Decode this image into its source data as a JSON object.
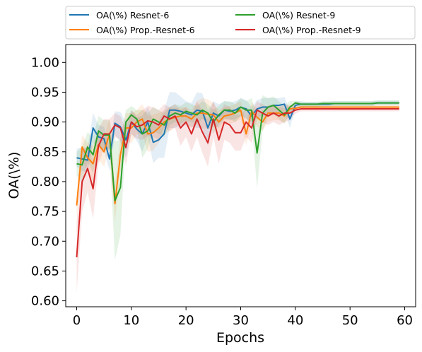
{
  "chart_data": {
    "type": "line",
    "title": "",
    "xlabel": "Epochs",
    "ylabel": "OA(\\%)",
    "xlim": [
      -2,
      62
    ],
    "ylim": [
      0.59,
      1.03
    ],
    "xticks": [
      0,
      10,
      20,
      30,
      40,
      50,
      60
    ],
    "yticks": [
      0.6,
      0.65,
      0.7,
      0.75,
      0.8,
      0.85,
      0.9,
      0.95,
      1.0
    ],
    "grid": false,
    "legend": {
      "position": "top",
      "columns": 2
    },
    "series": [
      {
        "name": "OA(\\%) Resnet-6",
        "color": "#1f77b4",
        "values": [
          0.84,
          0.838,
          0.836,
          0.89,
          0.875,
          0.872,
          0.838,
          0.898,
          0.892,
          0.87,
          0.9,
          0.888,
          0.88,
          0.9,
          0.866,
          0.87,
          0.88,
          0.92,
          0.92,
          0.918,
          0.915,
          0.912,
          0.92,
          0.918,
          0.89,
          0.915,
          0.91,
          0.92,
          0.918,
          0.92,
          0.925,
          0.922,
          0.91,
          0.922,
          0.925,
          0.925,
          0.928,
          0.928,
          0.93,
          0.905,
          0.928,
          0.93,
          0.93,
          0.93,
          0.93,
          0.93,
          0.93,
          0.931,
          0.931,
          0.931,
          0.931,
          0.931,
          0.931,
          0.931,
          0.931,
          0.932,
          0.932,
          0.932,
          0.932,
          0.932
        ],
        "band": [
          0.015,
          0.02,
          0.02,
          0.025,
          0.02,
          0.02,
          0.02,
          0.02,
          0.025,
          0.03,
          0.02,
          0.02,
          0.03,
          0.025,
          0.035,
          0.03,
          0.04,
          0.03,
          0.03,
          0.025,
          0.02,
          0.02,
          0.03,
          0.03,
          0.03,
          0.02,
          0.02,
          0.015,
          0.015,
          0.015,
          0.015,
          0.015,
          0.015,
          0.015,
          0.015,
          0.015,
          0.012,
          0.012,
          0.012,
          0.015,
          0.006,
          0.005,
          0.004,
          0.004,
          0.004,
          0.004,
          0.004,
          0.004,
          0.004,
          0.004,
          0.004,
          0.004,
          0.004,
          0.004,
          0.004,
          0.004,
          0.004,
          0.004,
          0.004,
          0.004
        ]
      },
      {
        "name": "OA(\\%) Prop.-Resnet-6",
        "color": "#ff7f0e",
        "values": [
          0.76,
          0.858,
          0.84,
          0.83,
          0.862,
          0.85,
          0.88,
          0.763,
          0.845,
          0.89,
          0.89,
          0.9,
          0.905,
          0.88,
          0.882,
          0.89,
          0.9,
          0.905,
          0.908,
          0.91,
          0.91,
          0.905,
          0.915,
          0.915,
          0.913,
          0.912,
          0.9,
          0.91,
          0.912,
          0.915,
          0.92,
          0.88,
          0.918,
          0.908,
          0.9,
          0.915,
          0.915,
          0.915,
          0.91,
          0.922,
          0.923,
          0.925,
          0.925,
          0.925,
          0.925,
          0.925,
          0.925,
          0.925,
          0.925,
          0.925,
          0.925,
          0.925,
          0.925,
          0.925,
          0.925,
          0.925,
          0.925,
          0.925,
          0.925,
          0.925
        ],
        "band": [
          0.02,
          0.02,
          0.025,
          0.03,
          0.025,
          0.025,
          0.025,
          0.03,
          0.03,
          0.025,
          0.025,
          0.02,
          0.025,
          0.03,
          0.03,
          0.025,
          0.02,
          0.02,
          0.015,
          0.015,
          0.015,
          0.015,
          0.02,
          0.025,
          0.025,
          0.02,
          0.02,
          0.015,
          0.015,
          0.015,
          0.015,
          0.02,
          0.015,
          0.015,
          0.015,
          0.015,
          0.012,
          0.012,
          0.012,
          0.008,
          0.004,
          0.004,
          0.004,
          0.004,
          0.004,
          0.004,
          0.004,
          0.004,
          0.004,
          0.004,
          0.004,
          0.004,
          0.004,
          0.004,
          0.004,
          0.004,
          0.004,
          0.004,
          0.004,
          0.004
        ]
      },
      {
        "name": "OA(\\%) Resnet-9",
        "color": "#2ca02c",
        "values": [
          0.83,
          0.828,
          0.858,
          0.845,
          0.885,
          0.878,
          0.878,
          0.768,
          0.79,
          0.9,
          0.912,
          0.905,
          0.88,
          0.885,
          0.905,
          0.9,
          0.895,
          0.91,
          0.915,
          0.912,
          0.918,
          0.915,
          0.912,
          0.92,
          0.915,
          0.9,
          0.912,
          0.92,
          0.92,
          0.915,
          0.925,
          0.92,
          0.92,
          0.848,
          0.915,
          0.925,
          0.928,
          0.92,
          0.912,
          0.925,
          0.932,
          0.93,
          0.93,
          0.93,
          0.93,
          0.931,
          0.931,
          0.931,
          0.931,
          0.931,
          0.931,
          0.931,
          0.931,
          0.931,
          0.931,
          0.932,
          0.932,
          0.932,
          0.932,
          0.932
        ],
        "band": [
          0.02,
          0.03,
          0.025,
          0.03,
          0.025,
          0.025,
          0.025,
          0.1,
          0.08,
          0.02,
          0.015,
          0.015,
          0.04,
          0.03,
          0.02,
          0.02,
          0.02,
          0.015,
          0.015,
          0.015,
          0.015,
          0.015,
          0.015,
          0.015,
          0.015,
          0.02,
          0.015,
          0.015,
          0.015,
          0.015,
          0.015,
          0.015,
          0.02,
          0.06,
          0.03,
          0.015,
          0.015,
          0.015,
          0.015,
          0.01,
          0.004,
          0.004,
          0.004,
          0.004,
          0.004,
          0.004,
          0.004,
          0.004,
          0.004,
          0.004,
          0.004,
          0.004,
          0.004,
          0.004,
          0.004,
          0.004,
          0.004,
          0.004,
          0.004,
          0.004
        ]
      },
      {
        "name": "OA(\\%) Prop.-Resnet-9",
        "color": "#d62728",
        "values": [
          0.673,
          0.8,
          0.822,
          0.788,
          0.86,
          0.88,
          0.88,
          0.895,
          0.89,
          0.857,
          0.9,
          0.892,
          0.895,
          0.902,
          0.9,
          0.895,
          0.91,
          0.905,
          0.91,
          0.89,
          0.9,
          0.88,
          0.905,
          0.883,
          0.865,
          0.905,
          0.87,
          0.9,
          0.895,
          0.882,
          0.882,
          0.9,
          0.89,
          0.92,
          0.915,
          0.91,
          0.915,
          0.91,
          0.915,
          0.915,
          0.92,
          0.922,
          0.922,
          0.922,
          0.922,
          0.922,
          0.922,
          0.922,
          0.922,
          0.922,
          0.922,
          0.922,
          0.922,
          0.922,
          0.922,
          0.922,
          0.922,
          0.922,
          0.922,
          0.922
        ],
        "band": [
          0.06,
          0.05,
          0.04,
          0.05,
          0.03,
          0.025,
          0.025,
          0.02,
          0.02,
          0.03,
          0.02,
          0.02,
          0.025,
          0.025,
          0.025,
          0.025,
          0.02,
          0.02,
          0.02,
          0.03,
          0.025,
          0.03,
          0.03,
          0.035,
          0.04,
          0.03,
          0.04,
          0.03,
          0.03,
          0.03,
          0.03,
          0.025,
          0.025,
          0.015,
          0.015,
          0.015,
          0.015,
          0.015,
          0.015,
          0.012,
          0.006,
          0.004,
          0.004,
          0.004,
          0.004,
          0.004,
          0.004,
          0.004,
          0.004,
          0.004,
          0.004,
          0.004,
          0.004,
          0.004,
          0.004,
          0.004,
          0.004,
          0.004,
          0.004,
          0.004
        ]
      }
    ]
  }
}
